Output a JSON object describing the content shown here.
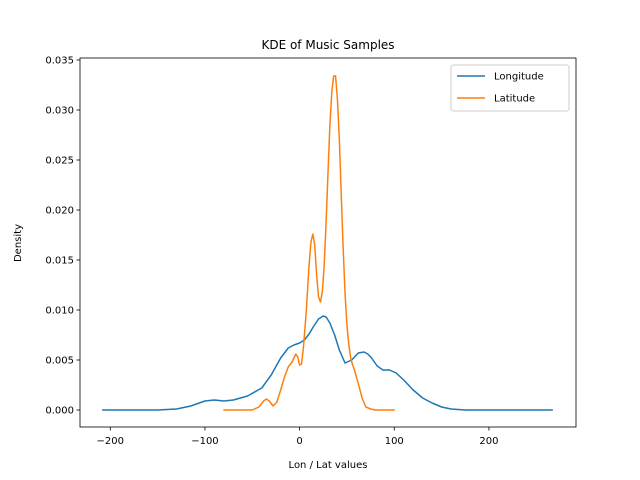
{
  "chart_data": {
    "type": "line",
    "title": "KDE of Music Samples",
    "xlabel": "Lon / Lat values",
    "ylabel": "Density",
    "xlim": [
      -232,
      292
    ],
    "ylim": [
      -0.0017,
      0.0352
    ],
    "xticks": [
      -200,
      -100,
      0,
      100,
      200
    ],
    "yticks": [
      0.0,
      0.005,
      0.01,
      0.015,
      0.02,
      0.025,
      0.03,
      0.035
    ],
    "xtick_labels": [
      "−200",
      "−100",
      "0",
      "100",
      "200"
    ],
    "ytick_labels": [
      "0.000",
      "0.005",
      "0.010",
      "0.015",
      "0.020",
      "0.025",
      "0.030",
      "0.035"
    ],
    "grid": false,
    "legend_position": "upper right",
    "series": [
      {
        "name": "Longitude",
        "color": "#1f77b4",
        "x": [
          -208,
          -180,
          -150,
          -130,
          -115,
          -100,
          -90,
          -80,
          -70,
          -55,
          -40,
          -30,
          -20,
          -12,
          -6,
          0,
          5,
          10,
          15,
          20,
          25,
          28,
          32,
          37,
          42,
          48,
          55,
          62,
          68,
          72,
          76,
          82,
          88,
          95,
          102,
          110,
          120,
          130,
          140,
          150,
          160,
          175,
          190,
          220,
          250,
          267
        ],
        "y": [
          0.0,
          0.0,
          0.0,
          0.0001,
          0.0004,
          0.0009,
          0.001,
          0.0009,
          0.001,
          0.0014,
          0.0022,
          0.0035,
          0.0052,
          0.0062,
          0.0065,
          0.0067,
          0.007,
          0.0076,
          0.0084,
          0.0091,
          0.0094,
          0.0093,
          0.0087,
          0.0075,
          0.006,
          0.0047,
          0.005,
          0.0057,
          0.0058,
          0.0056,
          0.0052,
          0.0044,
          0.004,
          0.004,
          0.0037,
          0.003,
          0.002,
          0.0012,
          0.0007,
          0.0003,
          0.0001,
          0.0,
          0.0,
          0.0,
          0.0,
          0.0
        ]
      },
      {
        "name": "Latitude",
        "color": "#ff7f0e",
        "x": [
          -80,
          -60,
          -50,
          -43,
          -38,
          -35,
          -32,
          -28,
          -24,
          -20,
          -16,
          -12,
          -8,
          -4,
          -2,
          0,
          2,
          4,
          7,
          10,
          12,
          14,
          16,
          18,
          20,
          22,
          24,
          26,
          28,
          30,
          32,
          34,
          36,
          38,
          40,
          42,
          44,
          46,
          48,
          50,
          52,
          54,
          56,
          58,
          60,
          63,
          66,
          70,
          75,
          80,
          90,
          100
        ],
        "y": [
          0.0,
          0.0,
          0.0,
          0.0003,
          0.0009,
          0.0011,
          0.0009,
          0.0004,
          0.0008,
          0.002,
          0.0033,
          0.0043,
          0.0048,
          0.0056,
          0.0053,
          0.0045,
          0.0046,
          0.0062,
          0.0098,
          0.0145,
          0.0168,
          0.0176,
          0.0165,
          0.0135,
          0.0113,
          0.0108,
          0.0118,
          0.0145,
          0.0188,
          0.0237,
          0.0285,
          0.0318,
          0.0334,
          0.0334,
          0.031,
          0.027,
          0.0215,
          0.0162,
          0.0117,
          0.0085,
          0.0065,
          0.0052,
          0.0045,
          0.004,
          0.0033,
          0.0023,
          0.0012,
          0.0003,
          0.0001,
          0.0,
          0.0,
          0.0
        ]
      }
    ]
  }
}
